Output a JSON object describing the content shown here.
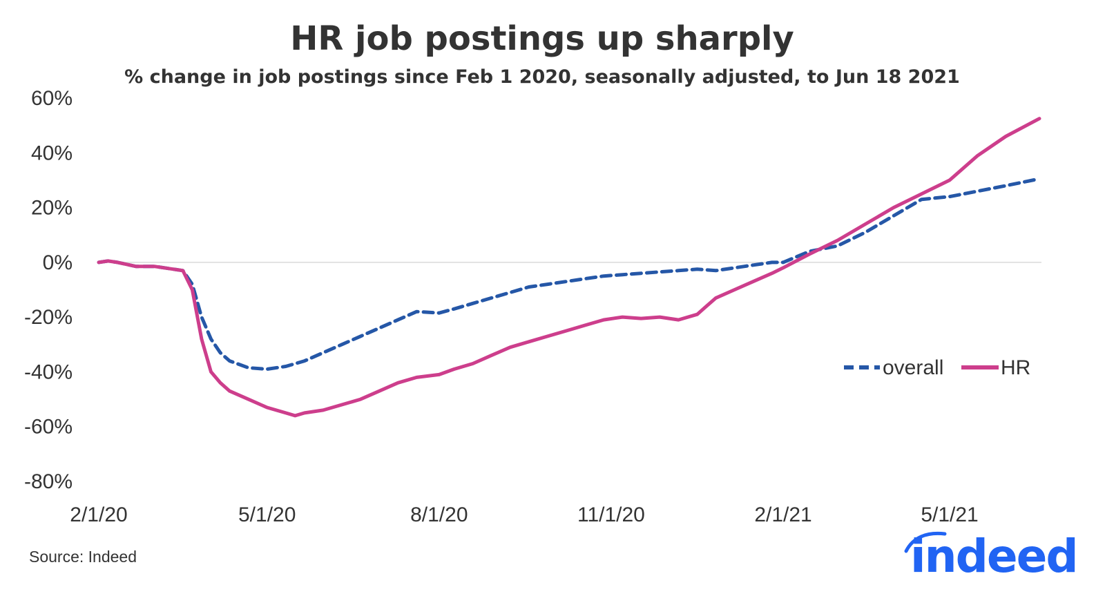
{
  "chart_data": {
    "type": "line",
    "title": "HR job postings up sharply",
    "subtitle": "% change in job postings since Feb 1 2020, seasonally adjusted, to Jun 18 2021",
    "xlabel": "",
    "ylabel": "",
    "x_tick_labels": [
      "2/1/20",
      "5/1/20",
      "8/1/20",
      "11/1/20",
      "2/1/21",
      "5/1/21"
    ],
    "x_tick_days": [
      0,
      90,
      182,
      274,
      366,
      455
    ],
    "xlim": [
      0,
      503
    ],
    "y_ticks": [
      60,
      40,
      20,
      0,
      -20,
      -40,
      -60,
      -80
    ],
    "y_tick_labels": [
      "60%",
      "40%",
      "20%",
      "0%",
      "-20%",
      "-40%",
      "-60%",
      "-80%"
    ],
    "ylim": [
      -80,
      60
    ],
    "legend_position": "right",
    "source_text": "Source: Indeed",
    "colors": {
      "overall": "#2557a7",
      "HR": "#cd3e8c",
      "zero_line": "#d9d9d9",
      "logo": "#2164f3"
    },
    "series": [
      {
        "name": "overall",
        "style": "dashed",
        "days": [
          0,
          5,
          10,
          20,
          30,
          40,
          45,
          50,
          55,
          60,
          65,
          70,
          80,
          90,
          100,
          110,
          120,
          130,
          140,
          150,
          160,
          170,
          182,
          190,
          200,
          210,
          220,
          230,
          240,
          250,
          260,
          270,
          280,
          290,
          300,
          310,
          320,
          330,
          340,
          345,
          350,
          360,
          366,
          380,
          395,
          410,
          425,
          440,
          455,
          470,
          485,
          503
        ],
        "values": [
          0,
          0.5,
          0,
          -1.5,
          -1.5,
          -2.5,
          -3,
          -8,
          -20,
          -28,
          -33,
          -36,
          -38.5,
          -39,
          -38,
          -36,
          -33,
          -30,
          -27,
          -24,
          -21,
          -18,
          -18.5,
          -17,
          -15,
          -13,
          -11,
          -9,
          -8,
          -7,
          -6,
          -5,
          -4.5,
          -4,
          -3.5,
          -3,
          -2.5,
          -3,
          -2,
          -1.5,
          -1,
          0,
          0,
          4,
          6,
          11,
          17,
          23,
          24,
          26,
          28,
          30.5
        ]
      },
      {
        "name": "HR",
        "style": "solid",
        "days": [
          0,
          5,
          10,
          20,
          30,
          40,
          45,
          50,
          55,
          60,
          65,
          70,
          80,
          90,
          100,
          105,
          110,
          120,
          130,
          140,
          150,
          160,
          170,
          182,
          190,
          200,
          210,
          220,
          230,
          240,
          250,
          260,
          270,
          280,
          290,
          300,
          310,
          320,
          325,
          330,
          340,
          350,
          360,
          366,
          380,
          395,
          410,
          425,
          440,
          455,
          470,
          485,
          503
        ],
        "values": [
          0,
          0.5,
          0,
          -1.5,
          -1.5,
          -2.5,
          -3,
          -10,
          -28,
          -40,
          -44,
          -47,
          -50,
          -53,
          -55,
          -56,
          -55,
          -54,
          -52,
          -50,
          -47,
          -44,
          -42,
          -41,
          -39,
          -37,
          -34,
          -31,
          -29,
          -27,
          -25,
          -23,
          -21,
          -20,
          -20.5,
          -20,
          -21,
          -19,
          -16,
          -13,
          -10,
          -7,
          -4,
          -2,
          3,
          8,
          14,
          20,
          25,
          30,
          39,
          46,
          52.5
        ]
      }
    ]
  }
}
